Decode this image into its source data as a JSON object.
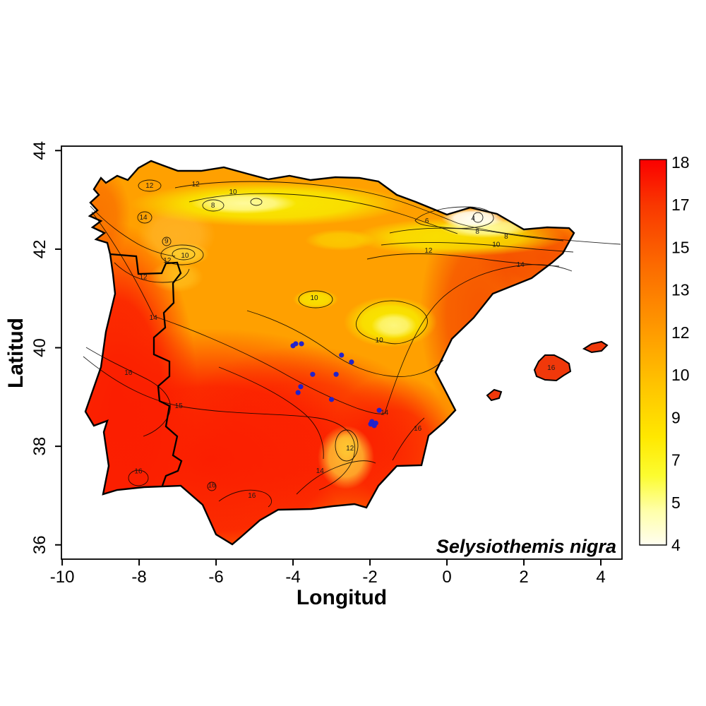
{
  "figure": {
    "xlabel": "Longitud",
    "ylabel": "Latitud",
    "annotation": "Selysiothemis nigra"
  },
  "chart_data": {
    "type": "heatmap",
    "subtype": "filled-contour-climate-surface-with-species-occurrences",
    "region": "Iberian Peninsula with Balearic Islands",
    "annotation": "Selysiothemis nigra",
    "xlabel": "Longitud",
    "ylabel": "Latitud",
    "xlim": [
      -10.02,
      4.55
    ],
    "ylim": [
      35.71,
      44.09
    ],
    "x_ticks": [
      "-10",
      "-8",
      "-6",
      "-4",
      "-2",
      "0",
      "2",
      "4"
    ],
    "y_ticks": [
      "36",
      "38",
      "40",
      "42",
      "44"
    ],
    "grid": false,
    "legend_position": "right-colorbar",
    "palette": {
      "high_value_red": "#fb1e00",
      "mid_orange": "#ffa000",
      "low_yellow": "#f8e800",
      "lowest_white": "#fffef0",
      "occurrence_blue": "#2222cc",
      "sea_background": "#ffffff",
      "line_black": "#000000"
    },
    "colorbar": {
      "tick_labels_top_to_bottom": [
        "18",
        "17",
        "15",
        "13",
        "12",
        "10",
        "9",
        "7",
        "5",
        "4"
      ],
      "top_color": "#fb0000",
      "bottom_color": "#fffef0",
      "gradient_top_to_bottom": [
        "#fb0000",
        "#f93800",
        "#fc6c00",
        "#ff9c00",
        "#ffc800",
        "#ffe800",
        "#fcfc30",
        "#ffffa8",
        "#fffef0"
      ]
    },
    "contour_labels": [
      {
        "level": "12",
        "lon": -7.73,
        "lat": 43.29
      },
      {
        "level": "12",
        "lon": -6.53,
        "lat": 43.32
      },
      {
        "level": "10",
        "lon": -5.56,
        "lat": 43.16
      },
      {
        "level": "8",
        "lon": -6.08,
        "lat": 42.89
      },
      {
        "level": "6",
        "lon": -0.52,
        "lat": 42.57
      },
      {
        "level": "4",
        "lon": 0.68,
        "lat": 42.62
      },
      {
        "level": "8",
        "lon": 0.79,
        "lat": 42.36
      },
      {
        "level": "8",
        "lon": 1.54,
        "lat": 42.26
      },
      {
        "level": "10",
        "lon": 1.28,
        "lat": 42.09
      },
      {
        "level": "12",
        "lon": -0.48,
        "lat": 41.97
      },
      {
        "level": "14",
        "lon": 1.91,
        "lat": 41.68
      },
      {
        "level": "14",
        "lon": -7.89,
        "lat": 42.64
      },
      {
        "level": "9",
        "lon": -7.29,
        "lat": 42.16
      },
      {
        "level": "10",
        "lon": -6.81,
        "lat": 41.87
      },
      {
        "level": "12",
        "lon": -7.27,
        "lat": 41.77
      },
      {
        "level": "12",
        "lon": -7.89,
        "lat": 41.43
      },
      {
        "level": "14",
        "lon": -7.63,
        "lat": 40.61
      },
      {
        "level": "16",
        "lon": -8.28,
        "lat": 39.49
      },
      {
        "level": "15",
        "lon": -6.97,
        "lat": 38.82
      },
      {
        "level": "10",
        "lon": -3.45,
        "lat": 41.01
      },
      {
        "level": "10",
        "lon": -1.76,
        "lat": 40.15
      },
      {
        "level": "14",
        "lon": -1.62,
        "lat": 38.68
      },
      {
        "level": "12",
        "lon": -2.52,
        "lat": 37.96
      },
      {
        "level": "14",
        "lon": -3.3,
        "lat": 37.5
      },
      {
        "level": "16",
        "lon": -5.07,
        "lat": 37.0
      },
      {
        "level": "16",
        "lon": -8.02,
        "lat": 37.49
      },
      {
        "level": "16",
        "lon": -6.11,
        "lat": 37.21
      },
      {
        "level": "16",
        "lon": -0.76,
        "lat": 38.36
      },
      {
        "level": "16",
        "lon": 2.71,
        "lat": 39.59
      }
    ],
    "occurrence_points": {
      "color": "#2222cc",
      "lonlat": [
        [
          -4.0,
          40.04
        ],
        [
          -3.93,
          40.08
        ],
        [
          -3.78,
          40.08
        ],
        [
          -2.74,
          39.85
        ],
        [
          -2.48,
          39.71
        ],
        [
          -3.49,
          39.46
        ],
        [
          -2.88,
          39.46
        ],
        [
          -3.8,
          39.21
        ],
        [
          -3.87,
          39.09
        ],
        [
          -3.0,
          38.95
        ],
        [
          -1.76,
          38.73
        ],
        [
          -1.95,
          38.5
        ],
        [
          -1.85,
          38.47
        ],
        [
          -1.98,
          38.45
        ],
        [
          -1.89,
          38.42
        ]
      ]
    }
  }
}
